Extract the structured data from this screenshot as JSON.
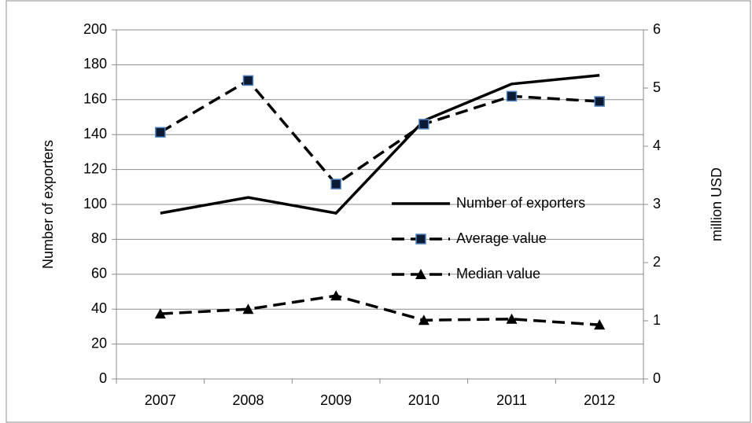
{
  "chart_data": {
    "type": "line",
    "categories": [
      "2007",
      "2008",
      "2009",
      "2010",
      "2011",
      "2012"
    ],
    "ylabel": "Number of exporters",
    "y2label": "million USD",
    "ylim": [
      0,
      200
    ],
    "yticks": [
      0,
      20,
      40,
      60,
      80,
      100,
      120,
      140,
      160,
      180,
      200
    ],
    "y2lim": [
      0,
      6
    ],
    "y2ticks": [
      0,
      1,
      2,
      3,
      4,
      5,
      6
    ],
    "grid": true,
    "legend": "right",
    "series": [
      {
        "name": "Number of exporters",
        "color": "#000000",
        "dash": false,
        "marker": "none",
        "values": [
          95,
          104,
          95,
          148,
          169,
          174
        ]
      },
      {
        "name": "Average value",
        "color": "#000000",
        "dash": true,
        "marker": "square",
        "axis": "y2",
        "values": [
          4.24,
          5.13,
          3.35,
          4.38,
          4.86,
          4.77
        ]
      },
      {
        "name": "Median value",
        "color": "#000000",
        "dash": true,
        "marker": "triangle",
        "axis": "y2",
        "values": [
          1.12,
          1.2,
          1.43,
          1.01,
          1.03,
          0.93
        ]
      }
    ]
  }
}
